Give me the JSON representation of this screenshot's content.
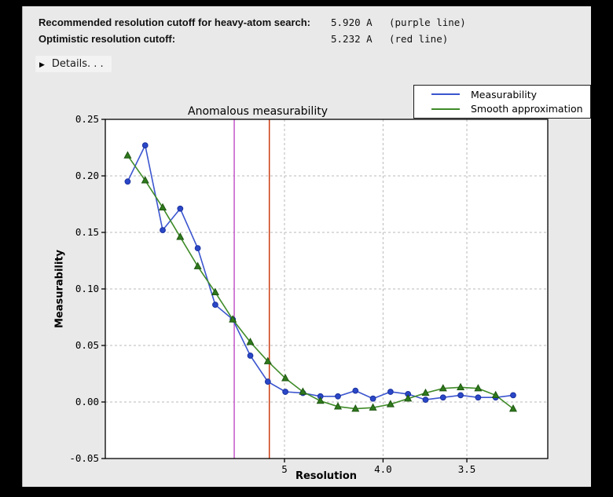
{
  "header": {
    "rows": [
      {
        "label": "Recommended resolution cutoff for heavy-atom search:",
        "value": "5.920 A",
        "note": "(purple line)"
      },
      {
        "label": "Optimistic resolution cutoff:",
        "value": "5.232 A",
        "note": "(red line)"
      }
    ],
    "details_label": "Details. . .",
    "details_triangle": "▶"
  },
  "chart_data": {
    "type": "line",
    "title": "Anomalous measurability",
    "xlabel": "Resolution",
    "ylabel": "Measurability",
    "x_axis_units": "resolution in Angstrom, axis linear in 1/d^2 and reversed (low resolution at left)",
    "legend_position": "top-right, outside axes",
    "grid": "dashed gray at labeled ticks",
    "ylim": [
      -0.05,
      0.25
    ],
    "xlim_s2": [
      -0.0009,
      0.1001
    ],
    "y_ticks": [
      {
        "label": "0.25",
        "v": 0.25,
        "grid": false
      },
      {
        "label": "0.20",
        "v": 0.2,
        "grid": true
      },
      {
        "label": "0.15",
        "v": 0.15,
        "grid": true
      },
      {
        "label": "0.10",
        "v": 0.1,
        "grid": true
      },
      {
        "label": "0.05",
        "v": 0.05,
        "grid": true
      },
      {
        "label": "0.00",
        "v": 0.0,
        "grid": true
      },
      {
        "label": "-0.05",
        "v": -0.05,
        "grid": false
      }
    ],
    "x_ticks": [
      {
        "label": "5",
        "s2": 0.04,
        "grid": true
      },
      {
        "label": "4.0",
        "s2": 0.0625,
        "grid": true
      },
      {
        "label": "3.5",
        "s2": 0.08163,
        "grid": true
      }
    ],
    "x_s2": [
      0.0042,
      0.0082,
      0.0122,
      0.0162,
      0.0202,
      0.0242,
      0.0282,
      0.0322,
      0.0362,
      0.0402,
      0.0442,
      0.0482,
      0.0522,
      0.0562,
      0.0602,
      0.0642,
      0.0682,
      0.0722,
      0.0762,
      0.0802,
      0.0842,
      0.0882,
      0.0922
    ],
    "x_resolution_A": [
      15.4,
      11.0,
      9.1,
      7.9,
      7.0,
      6.4,
      6.0,
      5.6,
      5.3,
      5.0,
      4.8,
      4.6,
      4.4,
      4.2,
      4.1,
      3.9,
      3.8,
      3.7,
      3.6,
      3.5,
      3.4,
      3.4,
      3.3
    ],
    "series": [
      {
        "name": "Measurability",
        "color": "#3b55cf",
        "marker": "circle",
        "marker_fill": "#2a47c8",
        "marker_edge": "#1c329e",
        "values": [
          0.195,
          0.227,
          0.152,
          0.171,
          0.136,
          0.086,
          0.073,
          0.041,
          0.018,
          0.009,
          0.008,
          0.005,
          0.005,
          0.01,
          0.003,
          0.009,
          0.007,
          0.002,
          0.004,
          0.006,
          0.004,
          0.004,
          0.006
        ]
      },
      {
        "name": "Smooth approximation",
        "color": "#3f8b28",
        "marker": "triangle",
        "marker_fill": "#2f7a1c",
        "marker_edge": "#1e5512",
        "values": [
          0.218,
          0.196,
          0.172,
          0.146,
          0.12,
          0.097,
          0.073,
          0.053,
          0.036,
          0.021,
          0.009,
          0.001,
          -0.004,
          -0.006,
          -0.005,
          -0.002,
          0.003,
          0.008,
          0.012,
          0.013,
          0.012,
          0.006,
          -0.006
        ]
      }
    ],
    "vlines": [
      {
        "name": "recommended-cutoff-purple-line",
        "resolution_A": 5.92,
        "s2": 0.02853,
        "color": "#c455c8"
      },
      {
        "name": "optimistic-cutoff-red-line",
        "resolution_A": 5.232,
        "s2": 0.03654,
        "color": "#cc3b10"
      }
    ]
  },
  "colors": {
    "window_bg": "#e9e9e9",
    "plot_bg": "#ffffff",
    "grid": "#b9b9b9",
    "axis": "#000000",
    "measurability_blue": "#3b55cf",
    "smooth_green": "#3f8b28",
    "purple_line": "#c455c8",
    "red_line": "#cc3b10"
  }
}
